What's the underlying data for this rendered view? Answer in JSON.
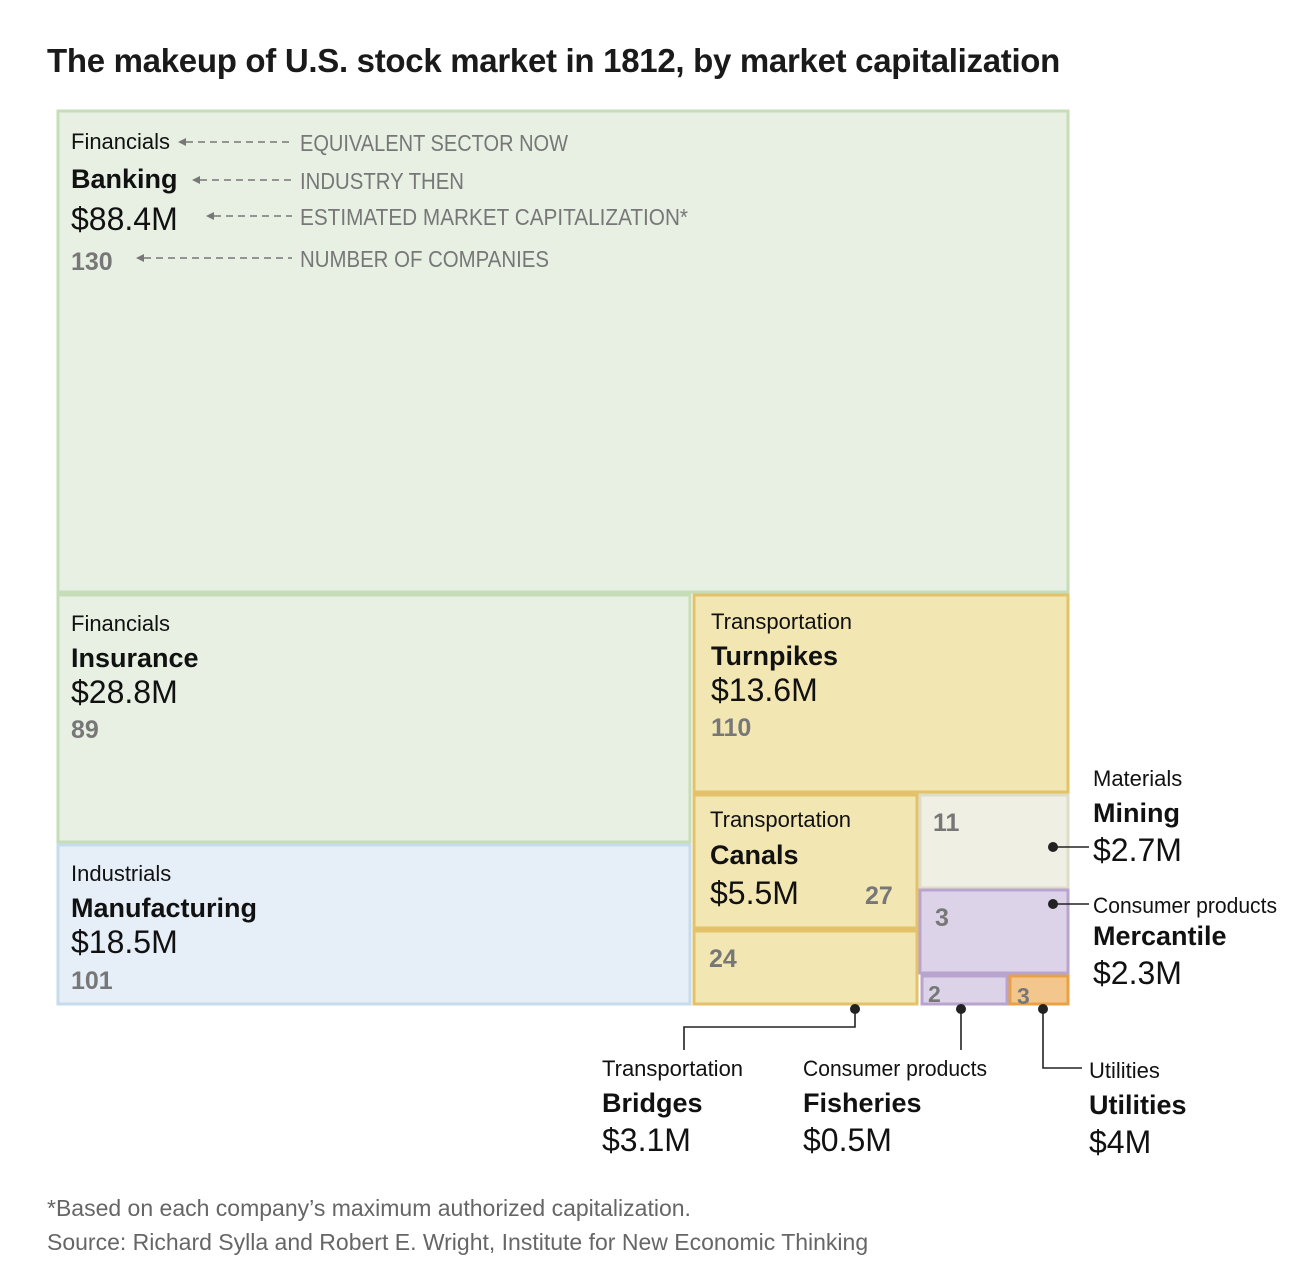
{
  "title": "The makeup of U.S. stock market in 1812, by market capitalization",
  "footnote": "*Based on each company’s maximum authorized capitalization.",
  "source": "Source: Richard Sylla and Robert E. Wright, Institute for New Economic Thinking",
  "key_labels": {
    "sector": "EQUIVALENT SECTOR NOW",
    "industry": "INDUSTRY THEN",
    "cap": "ESTIMATED MARKET CAPITALIZATION*",
    "count": "NUMBER OF COMPANIES"
  },
  "colors": {
    "Financials": "#e7f0e3",
    "Financials_border": "#c5deb8",
    "Industrials": "#e6eef8",
    "Industrials_border": "#c6dced",
    "Transportation": "#f2e6b2",
    "Transportation_border": "#e3c26a",
    "Materials": "#f0efe3",
    "Materials_border": "#ddddc9",
    "Consumer products": "#ddd3e8",
    "Consumer products_border": "#b9a4cf",
    "Utilities": "#f2c68c",
    "Utilities_border": "#e9a146"
  },
  "chart_data": {
    "type": "treemap",
    "units": "USD millions",
    "items": [
      {
        "sector": "Financials",
        "industry": "Banking",
        "cap_label": "$88.4M",
        "value": 88.4,
        "count": 130
      },
      {
        "sector": "Financials",
        "industry": "Insurance",
        "cap_label": "$28.8M",
        "value": 28.8,
        "count": 89
      },
      {
        "sector": "Industrials",
        "industry": "Manufacturing",
        "cap_label": "$18.5M",
        "value": 18.5,
        "count": 101
      },
      {
        "sector": "Transportation",
        "industry": "Turnpikes",
        "cap_label": "$13.6M",
        "value": 13.6,
        "count": 110
      },
      {
        "sector": "Transportation",
        "industry": "Canals",
        "cap_label": "$5.5M",
        "value": 5.5,
        "count": 27
      },
      {
        "sector": "Transportation",
        "industry": "Bridges",
        "cap_label": "$3.1M",
        "value": 3.1,
        "count": 24
      },
      {
        "sector": "Materials",
        "industry": "Mining",
        "cap_label": "$2.7M",
        "value": 2.7,
        "count": 11
      },
      {
        "sector": "Consumer products",
        "industry": "Mercantile",
        "cap_label": "$2.3M",
        "value": 2.3,
        "count": 3
      },
      {
        "sector": "Consumer products",
        "industry": "Fisheries",
        "cap_label": "$0.5M",
        "value": 0.5,
        "count": 2
      },
      {
        "sector": "Utilities",
        "industry": "Utilities",
        "cap_label": "$4M",
        "value": 4,
        "count": 3
      }
    ]
  }
}
